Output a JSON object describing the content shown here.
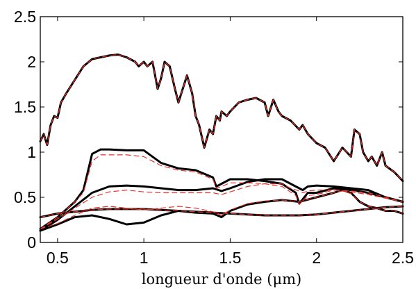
{
  "chart_data": {
    "type": "line",
    "title": "",
    "xlabel": "longueur d'onde (μm)",
    "ylabel": "",
    "xlim": [
      0.4,
      2.5
    ],
    "ylim": [
      0,
      2.5
    ],
    "xticks": [
      0.5,
      1,
      1.5,
      2,
      2.5
    ],
    "xtick_labels": [
      "0.5",
      "1",
      "1.5",
      "2",
      "2.5"
    ],
    "yticks": [
      0,
      0.5,
      1,
      1.5,
      2,
      2.5
    ],
    "ytick_labels": [
      "0",
      "0.5",
      "1",
      "1.5",
      "2",
      "2.5"
    ],
    "grid": false,
    "legend": "none",
    "colors": {
      "solid": "#000000",
      "dashed": "#e8312b"
    },
    "series": [
      {
        "style": "solid",
        "x": [
          0.4,
          0.42,
          0.44,
          0.46,
          0.48,
          0.5,
          0.52,
          0.55,
          0.6,
          0.65,
          0.7,
          0.75,
          0.8,
          0.85,
          0.9,
          0.95,
          0.97,
          1.0,
          1.02,
          1.05,
          1.08,
          1.1,
          1.12,
          1.15,
          1.18,
          1.2,
          1.25,
          1.28,
          1.3,
          1.32,
          1.35,
          1.38,
          1.4,
          1.42,
          1.44,
          1.45,
          1.48,
          1.5,
          1.55,
          1.6,
          1.65,
          1.7,
          1.72,
          1.75,
          1.78,
          1.8,
          1.85,
          1.9,
          1.92,
          1.95,
          2.0,
          2.05,
          2.1,
          2.15,
          2.2,
          2.22,
          2.25,
          2.27,
          2.3,
          2.32,
          2.35,
          2.38,
          2.4,
          2.45,
          2.5
        ],
        "y": [
          1.12,
          1.2,
          1.08,
          1.3,
          1.4,
          1.38,
          1.55,
          1.65,
          1.8,
          1.95,
          2.03,
          2.05,
          2.07,
          2.08,
          2.05,
          2.0,
          1.95,
          2.0,
          1.95,
          2.0,
          1.7,
          1.82,
          2.0,
          1.95,
          1.7,
          1.55,
          1.85,
          1.65,
          1.4,
          1.3,
          1.05,
          1.25,
          1.2,
          1.4,
          1.35,
          1.45,
          1.4,
          1.45,
          1.55,
          1.58,
          1.6,
          1.55,
          1.4,
          1.58,
          1.45,
          1.4,
          1.35,
          1.25,
          1.3,
          1.2,
          1.1,
          1.05,
          0.9,
          1.05,
          0.95,
          1.25,
          1.2,
          1.0,
          0.9,
          0.95,
          0.85,
          1.0,
          0.85,
          0.78,
          0.68
        ]
      },
      {
        "style": "dashed",
        "x": [
          0.4,
          0.42,
          0.44,
          0.46,
          0.48,
          0.5,
          0.52,
          0.55,
          0.6,
          0.65,
          0.7,
          0.75,
          0.8,
          0.85,
          0.9,
          0.95,
          0.97,
          1.0,
          1.02,
          1.05,
          1.08,
          1.1,
          1.12,
          1.15,
          1.18,
          1.2,
          1.25,
          1.28,
          1.3,
          1.32,
          1.35,
          1.38,
          1.4,
          1.42,
          1.44,
          1.45,
          1.48,
          1.5,
          1.55,
          1.6,
          1.65,
          1.7,
          1.72,
          1.75,
          1.78,
          1.8,
          1.85,
          1.9,
          1.92,
          1.95,
          2.0,
          2.05,
          2.1,
          2.15,
          2.2,
          2.22,
          2.25,
          2.27,
          2.3,
          2.32,
          2.35,
          2.38,
          2.4,
          2.45,
          2.5
        ],
        "y": [
          1.12,
          1.2,
          1.08,
          1.3,
          1.4,
          1.38,
          1.55,
          1.65,
          1.8,
          1.95,
          2.03,
          2.05,
          2.07,
          2.08,
          2.05,
          2.0,
          1.95,
          2.0,
          1.95,
          2.0,
          1.7,
          1.82,
          2.0,
          1.95,
          1.7,
          1.55,
          1.85,
          1.65,
          1.4,
          1.3,
          1.05,
          1.25,
          1.2,
          1.4,
          1.35,
          1.45,
          1.4,
          1.45,
          1.55,
          1.58,
          1.6,
          1.55,
          1.4,
          1.58,
          1.45,
          1.4,
          1.35,
          1.25,
          1.3,
          1.2,
          1.1,
          1.05,
          0.9,
          1.05,
          0.95,
          1.25,
          1.2,
          1.0,
          0.9,
          0.95,
          0.85,
          1.0,
          0.85,
          0.78,
          0.68
        ]
      },
      {
        "style": "solid",
        "x": [
          0.4,
          0.5,
          0.6,
          0.65,
          0.7,
          0.75,
          0.8,
          0.9,
          1.0,
          1.1,
          1.2,
          1.3,
          1.4,
          1.42,
          1.45,
          1.5,
          1.6,
          1.7,
          1.8,
          1.88,
          1.9,
          1.95,
          2.0,
          2.1,
          2.2,
          2.3,
          2.4,
          2.5
        ],
        "y": [
          0.15,
          0.28,
          0.45,
          0.58,
          0.98,
          1.03,
          1.03,
          1.02,
          1.02,
          0.88,
          0.82,
          0.8,
          0.72,
          0.62,
          0.65,
          0.7,
          0.7,
          0.68,
          0.65,
          0.55,
          0.43,
          0.55,
          0.55,
          0.6,
          0.58,
          0.55,
          0.5,
          0.45
        ]
      },
      {
        "style": "dashed",
        "x": [
          0.4,
          0.5,
          0.6,
          0.65,
          0.7,
          0.75,
          0.8,
          0.9,
          1.0,
          1.1,
          1.2,
          1.3,
          1.4,
          1.42,
          1.45,
          1.5,
          1.6,
          1.7,
          1.8,
          1.88,
          1.9,
          1.95,
          2.0,
          2.1,
          2.2,
          2.3,
          2.4,
          2.5
        ],
        "y": [
          0.15,
          0.28,
          0.45,
          0.55,
          0.9,
          0.97,
          0.97,
          0.97,
          0.95,
          0.85,
          0.8,
          0.78,
          0.7,
          0.6,
          0.62,
          0.66,
          0.66,
          0.65,
          0.62,
          0.52,
          0.42,
          0.52,
          0.53,
          0.58,
          0.56,
          0.53,
          0.49,
          0.45
        ]
      },
      {
        "style": "solid",
        "x": [
          0.4,
          0.5,
          0.6,
          0.7,
          0.8,
          0.9,
          1.0,
          1.1,
          1.2,
          1.3,
          1.4,
          1.45,
          1.5,
          1.6,
          1.7,
          1.8,
          1.85,
          1.9,
          1.92,
          1.95,
          2.0,
          2.1,
          2.2,
          2.3,
          2.4,
          2.5
        ],
        "y": [
          0.13,
          0.25,
          0.4,
          0.55,
          0.62,
          0.63,
          0.62,
          0.6,
          0.58,
          0.58,
          0.6,
          0.57,
          0.6,
          0.67,
          0.7,
          0.7,
          0.65,
          0.6,
          0.58,
          0.62,
          0.63,
          0.62,
          0.6,
          0.58,
          0.5,
          0.45
        ]
      },
      {
        "style": "dashed",
        "x": [
          0.4,
          0.5,
          0.6,
          0.7,
          0.8,
          0.9,
          1.0,
          1.1,
          1.2,
          1.3,
          1.4,
          1.45,
          1.5,
          1.6,
          1.7,
          1.8,
          1.85,
          1.9,
          1.92,
          1.95,
          2.0,
          2.1,
          2.2,
          2.3,
          2.4,
          2.5
        ],
        "y": [
          0.15,
          0.26,
          0.38,
          0.5,
          0.56,
          0.58,
          0.56,
          0.55,
          0.55,
          0.55,
          0.55,
          0.53,
          0.56,
          0.62,
          0.65,
          0.65,
          0.6,
          0.57,
          0.55,
          0.57,
          0.58,
          0.58,
          0.57,
          0.55,
          0.5,
          0.45
        ]
      },
      {
        "style": "solid",
        "x": [
          0.4,
          0.5,
          0.6,
          0.7,
          0.8,
          0.9,
          1.0,
          1.1,
          1.2,
          1.3,
          1.4,
          1.45,
          1.5,
          1.6,
          1.7,
          1.8,
          1.9,
          2.0,
          2.1,
          2.15,
          2.2,
          2.25,
          2.3,
          2.35,
          2.4,
          2.45,
          2.5
        ],
        "y": [
          0.13,
          0.2,
          0.28,
          0.3,
          0.26,
          0.2,
          0.22,
          0.3,
          0.35,
          0.33,
          0.32,
          0.28,
          0.35,
          0.42,
          0.45,
          0.47,
          0.45,
          0.5,
          0.55,
          0.58,
          0.55,
          0.45,
          0.4,
          0.38,
          0.35,
          0.35,
          0.32
        ]
      },
      {
        "style": "dashed",
        "x": [
          0.4,
          0.5,
          0.6,
          0.7,
          0.8,
          0.9,
          1.0,
          1.1,
          1.2,
          1.3,
          1.4,
          1.45,
          1.5,
          1.6,
          1.7,
          1.8,
          1.9,
          2.0,
          2.1,
          2.15,
          2.2,
          2.25,
          2.3,
          2.35,
          2.4,
          2.45,
          2.5
        ],
        "y": [
          0.15,
          0.21,
          0.3,
          0.38,
          0.4,
          0.38,
          0.36,
          0.38,
          0.4,
          0.38,
          0.34,
          0.3,
          0.36,
          0.43,
          0.46,
          0.47,
          0.45,
          0.5,
          0.55,
          0.57,
          0.54,
          0.45,
          0.4,
          0.38,
          0.35,
          0.35,
          0.32
        ]
      },
      {
        "style": "solid",
        "x": [
          0.4,
          0.5,
          0.6,
          0.7,
          0.8,
          0.9,
          1.0,
          1.1,
          1.2,
          1.3,
          1.4,
          1.5,
          1.6,
          1.7,
          1.8,
          1.9,
          2.0,
          2.1,
          2.2,
          2.3,
          2.4,
          2.5
        ],
        "y": [
          0.28,
          0.32,
          0.34,
          0.36,
          0.37,
          0.37,
          0.37,
          0.36,
          0.35,
          0.34,
          0.33,
          0.32,
          0.31,
          0.3,
          0.3,
          0.3,
          0.31,
          0.33,
          0.35,
          0.37,
          0.39,
          0.4
        ]
      },
      {
        "style": "dashed",
        "x": [
          0.4,
          0.5,
          0.6,
          0.7,
          0.8,
          0.9,
          1.0,
          1.1,
          1.2,
          1.3,
          1.4,
          1.5,
          1.6,
          1.7,
          1.8,
          1.9,
          2.0,
          2.1,
          2.2,
          2.3,
          2.4,
          2.5
        ],
        "y": [
          0.28,
          0.32,
          0.34,
          0.36,
          0.37,
          0.37,
          0.37,
          0.36,
          0.35,
          0.34,
          0.33,
          0.32,
          0.31,
          0.3,
          0.3,
          0.3,
          0.31,
          0.33,
          0.35,
          0.37,
          0.39,
          0.4
        ]
      }
    ]
  }
}
